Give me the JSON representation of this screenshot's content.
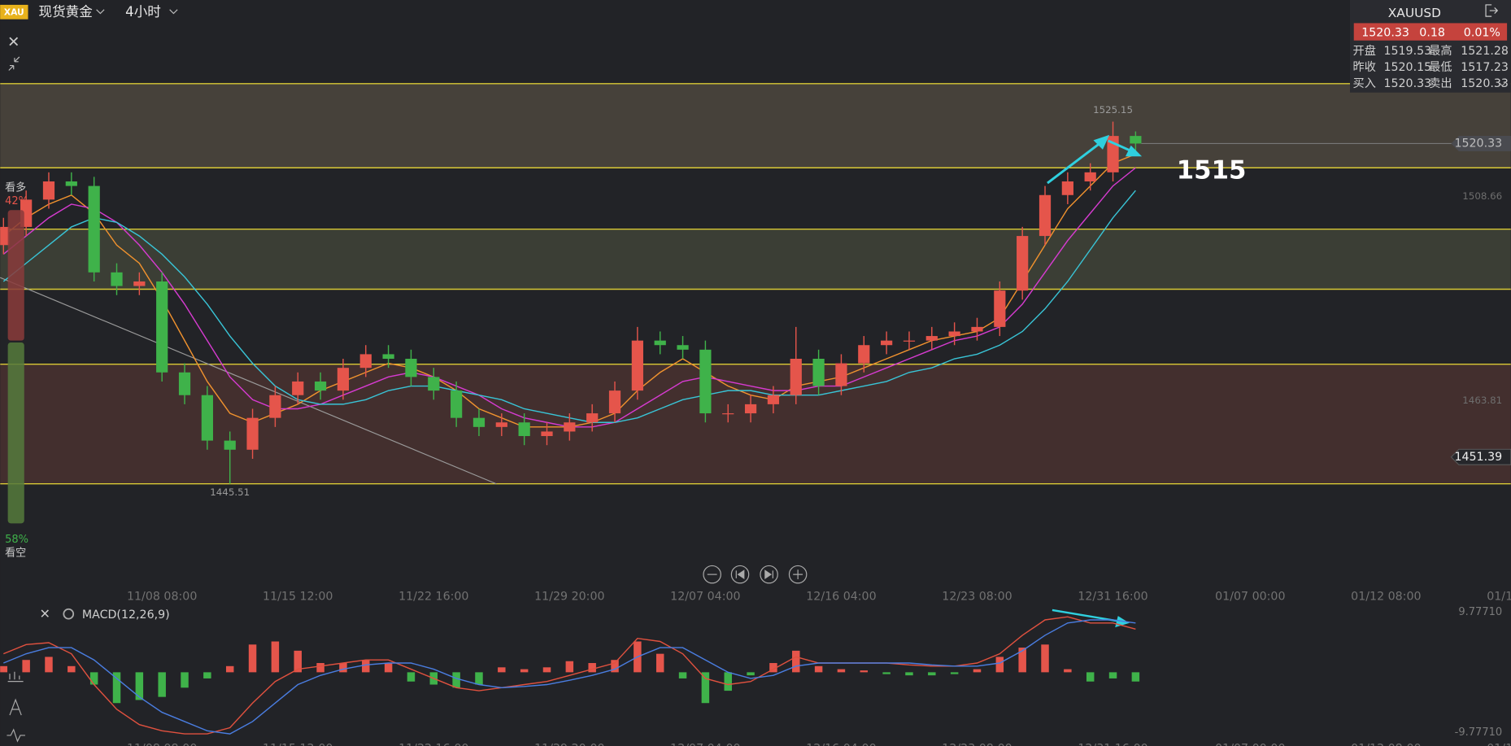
{
  "header": {
    "icon": "XAU",
    "symbol_name": "现货黄金",
    "timeframe": "4小时"
  },
  "quote": {
    "symbol": "XAUUSD",
    "price": 1520.33,
    "change": 0.18,
    "change_pct": "0.01%",
    "rows": [
      [
        "开盘",
        1519.53,
        "最高",
        1521.28
      ],
      [
        "昨收",
        1520.15,
        "最低",
        1517.23
      ],
      [
        "买入",
        1520.33,
        "卖出",
        1520.33
      ]
    ]
  },
  "sentiment": {
    "labels": [
      "看多",
      "看空"
    ],
    "values": [
      42,
      58
    ],
    "value_labels": [
      "42%",
      "58%"
    ],
    "colors": [
      "#8a3b3b",
      "#557a3c"
    ]
  },
  "chart_data": [
    {
      "type": "candlestick",
      "categories": [
        null,
        null,
        null,
        null,
        null,
        null,
        null,
        "11/08 08:00",
        null,
        null,
        null,
        null,
        null,
        "11/15 12:00",
        null,
        null,
        null,
        null,
        null,
        "11/22 16:00",
        null,
        null,
        null,
        null,
        null,
        "11/29 20:00",
        null,
        null,
        null,
        null,
        null,
        "12/07 04:00",
        null,
        null,
        null,
        null,
        null,
        "12/16 04:00",
        null,
        null,
        null,
        null,
        null,
        "12/23 08:00",
        null,
        null,
        null,
        null,
        null,
        "12/31 16:00",
        null
      ],
      "future_categories": [
        null,
        null,
        null,
        null,
        "01/07 00:00",
        null,
        null,
        null,
        null,
        null,
        "01/12 08:00",
        null,
        null,
        null,
        null,
        null,
        "01/1"
      ],
      "open": [
        1498,
        1502,
        1508,
        1512,
        1511,
        1492,
        1489,
        1490,
        1470,
        1465,
        1455,
        1453,
        1460,
        1465,
        1468,
        1466,
        1471,
        1474,
        1473,
        1469,
        1466,
        1460,
        1458,
        1459,
        1456,
        1457,
        1459,
        1461,
        1466,
        1477,
        1476,
        1475,
        1461,
        1461,
        1463,
        1465,
        1473,
        1467,
        1472,
        1476,
        1477,
        1477,
        1478,
        1479,
        1480,
        1488,
        1500,
        1509,
        1512,
        1514,
        1522
      ],
      "high": [
        1504,
        1510,
        1514,
        1514,
        1513,
        1494,
        1492,
        1492,
        1472,
        1467,
        1457,
        1462,
        1467,
        1470,
        1470,
        1473,
        1476,
        1476,
        1475,
        1471,
        1468,
        1462,
        1461,
        1461,
        1459,
        1461,
        1463,
        1468,
        1480,
        1479,
        1478,
        1477,
        1463,
        1465,
        1467,
        1480,
        1475,
        1474,
        1478,
        1479,
        1479,
        1480,
        1481,
        1482,
        1490,
        1502,
        1511,
        1514,
        1516,
        1525.15,
        1523
      ],
      "low": [
        1496,
        1500,
        1506,
        1509,
        1490,
        1487,
        1487,
        1468,
        1463,
        1453,
        1445.51,
        1451,
        1458,
        1463,
        1464,
        1464,
        1469,
        1471,
        1467,
        1464,
        1458,
        1456,
        1456,
        1454,
        1454,
        1455,
        1457,
        1459,
        1464,
        1474,
        1473,
        1459,
        1459,
        1459,
        1461,
        1463,
        1465,
        1465,
        1470,
        1474,
        1475,
        1475,
        1476,
        1477,
        1478,
        1486,
        1498,
        1507,
        1510,
        1512,
        1518
      ],
      "close": [
        1502,
        1508,
        1512,
        1511,
        1492,
        1489,
        1490,
        1470,
        1465,
        1455,
        1453,
        1460,
        1465,
        1468,
        1466,
        1471,
        1474,
        1473,
        1469,
        1466,
        1460,
        1458,
        1459,
        1456,
        1457,
        1459,
        1461,
        1466,
        1477,
        1476,
        1475,
        1461,
        1461,
        1463,
        1465,
        1473,
        1467,
        1472,
        1476,
        1477,
        1477,
        1478,
        1479,
        1480,
        1488,
        1500,
        1509,
        1512,
        1514,
        1522,
        1520.33
      ],
      "up_color": "#e5554b",
      "down_color": "#3fb24a",
      "ylim": [
        1427.9,
        1551.9
      ],
      "yticks": [
        1508.66,
        1463.81
      ],
      "price_tags": [
        1451.39
      ],
      "levels": [
        1533.5,
        1515,
        1501.5,
        1488.3,
        1471.8,
        1445.5
      ],
      "level_color": "#d9c935",
      "zone_colors": [
        "#46413a",
        "#3b3e35",
        "#432f2e"
      ],
      "ma_lines": [
        {
          "color": "#f0922e",
          "values": [
            1500,
            1504,
            1507,
            1509,
            1505,
            1498,
            1494,
            1486,
            1477,
            1468,
            1461,
            1459,
            1461,
            1463,
            1466,
            1468,
            1470,
            1472,
            1471,
            1469,
            1466,
            1462,
            1460,
            1458,
            1458,
            1458,
            1459,
            1461,
            1466,
            1470,
            1473,
            1470,
            1467,
            1465,
            1464,
            1467,
            1468,
            1469,
            1471,
            1473,
            1475,
            1477,
            1478,
            1479,
            1482,
            1490,
            1498,
            1506,
            1511,
            1516,
            1518
          ]
        },
        {
          "color": "#d63bd0",
          "values": [
            1496,
            1500,
            1504,
            1507,
            1506,
            1503,
            1498,
            1492,
            1485,
            1477,
            1469,
            1464,
            1462,
            1462,
            1463,
            1465,
            1467,
            1469,
            1470,
            1469,
            1467,
            1465,
            1462,
            1460,
            1459,
            1458,
            1458,
            1459,
            1462,
            1465,
            1468,
            1469,
            1468,
            1467,
            1466,
            1466,
            1467,
            1467,
            1469,
            1471,
            1473,
            1475,
            1477,
            1478,
            1480,
            1485,
            1492,
            1499,
            1505,
            1511,
            1515
          ]
        },
        {
          "color": "#39c4d6",
          "values": [
            1490,
            1494,
            1498,
            1502,
            1504,
            1503,
            1500,
            1496,
            1491,
            1485,
            1478,
            1472,
            1467,
            1464,
            1463,
            1463,
            1464,
            1466,
            1467,
            1467,
            1466,
            1465,
            1464,
            1462,
            1461,
            1460,
            1459,
            1459,
            1460,
            1462,
            1464,
            1465,
            1466,
            1466,
            1465,
            1465,
            1465,
            1466,
            1467,
            1468,
            1470,
            1471,
            1473,
            1474,
            1476,
            1479,
            1484,
            1490,
            1497,
            1504,
            1510
          ]
        }
      ]
    },
    {
      "type": "macd",
      "title": "MACD(12,26,9)",
      "ylim": [
        -9.7771,
        9.7771
      ],
      "yticks": [
        {
          "value": 9.7771,
          "label": "9.77710"
        },
        {
          "value": -9.7771,
          "label": "-9.77710"
        }
      ],
      "histogram": [
        1,
        2,
        2.5,
        1,
        -2,
        -5,
        -4.5,
        -4,
        -2.5,
        -1,
        1,
        4.5,
        5,
        3.5,
        1.5,
        1.5,
        2,
        1.5,
        -1.5,
        -2,
        -2.5,
        -2,
        0.8,
        0.5,
        0.8,
        1.8,
        1.5,
        2,
        5,
        3,
        -1,
        -5,
        -3,
        -0.5,
        1.5,
        3.5,
        1,
        0.5,
        0.3,
        -0.3,
        -0.5,
        -0.5,
        -0.3,
        0.5,
        2.5,
        4,
        4.5,
        0.5,
        -1.5,
        -1,
        -1.5
      ],
      "up_color": "#e5554b",
      "down_color": "#3fb24a",
      "dif": {
        "color": "#e0513f",
        "values": [
          3,
          4.5,
          4.8,
          3,
          -2,
          -6,
          -8.5,
          -9.5,
          -10,
          -10,
          -9,
          -5,
          -1.5,
          0.5,
          1,
          1.5,
          2,
          2,
          0.5,
          -1,
          -2.5,
          -3,
          -2.5,
          -2,
          -1.5,
          -0.5,
          0.5,
          1.5,
          5.5,
          5,
          3,
          -1,
          -2,
          -1.5,
          0.5,
          2.5,
          1.5,
          1.5,
          1.5,
          1.5,
          1.2,
          1,
          1,
          1.5,
          3,
          6,
          8.5,
          9,
          8,
          8,
          7
        ]
      },
      "dea": {
        "color": "#4a7de0",
        "values": [
          1.5,
          3,
          4,
          4,
          2,
          -1,
          -4,
          -6.5,
          -8,
          -9.5,
          -10,
          -8,
          -5,
          -2,
          -0.5,
          0.5,
          1.2,
          1.5,
          1.5,
          0.5,
          -1,
          -2,
          -2.5,
          -2.3,
          -2,
          -1.3,
          -0.5,
          0.5,
          2.5,
          4,
          4,
          2,
          0,
          -1,
          -0.5,
          1,
          1.5,
          1.5,
          1.5,
          1.5,
          1.5,
          1.2,
          1,
          1,
          1.5,
          3.5,
          6,
          8,
          8.5,
          8.5,
          8
        ]
      }
    }
  ]
}
